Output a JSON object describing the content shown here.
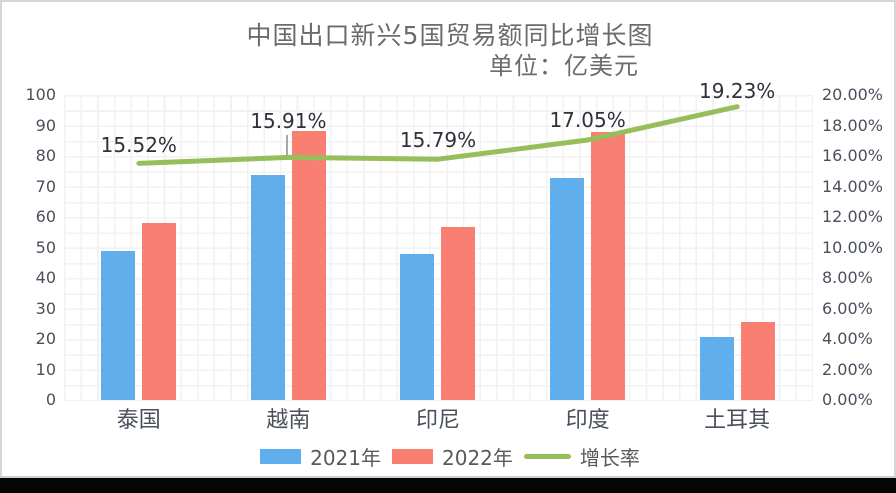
{
  "title": "中国出口新兴5国贸易额同比增长图",
  "subtitle": "单位：亿美元",
  "colors": {
    "bar_2021": "#61AEEC",
    "bar_2022": "#F97F72",
    "growth_line": "#97BE5A",
    "title_text": "#6B6B6B",
    "axis_text": "#4A505C",
    "data_label_text": "#30303A",
    "grid": "#F2F2F2",
    "card_background": "#FFFFFF",
    "outer_strip": "#050505"
  },
  "chart_data": {
    "type": "bar",
    "subtype": "combo-bar-line",
    "categories": [
      "泰国",
      "越南",
      "印尼",
      "印度",
      "土耳其"
    ],
    "series": [
      {
        "name": "2021年",
        "type": "bar",
        "axis": "left",
        "values": [
          48.9,
          73.9,
          47.8,
          72.8,
          20.5
        ]
      },
      {
        "name": "2022年",
        "type": "bar",
        "axis": "left",
        "values": [
          57.9,
          88.1,
          56.8,
          88.0,
          25.6
        ]
      },
      {
        "name": "增长率",
        "type": "line",
        "axis": "right",
        "values_pct": [
          15.52,
          15.91,
          15.79,
          17.05,
          19.23
        ],
        "point_labels": [
          "15.52%",
          "15.91%",
          "15.79%",
          "17.05%",
          "19.23%"
        ]
      }
    ],
    "left_axis": {
      "min": 0,
      "max": 100,
      "step": 10,
      "ticks": [
        "100",
        "90",
        "80",
        "70",
        "60",
        "50",
        "40",
        "30",
        "20",
        "10",
        "0"
      ]
    },
    "right_axis": {
      "min": 0,
      "max": 20,
      "step": 2,
      "ticks": [
        "20.00%",
        "18.00%",
        "16.00%",
        "14.00%",
        "12.00%",
        "10.00%",
        "8.00%",
        "6.00%",
        "4.00%",
        "2.00%",
        "0.00%"
      ]
    },
    "legend": [
      "2021年",
      "2022年",
      "增长率"
    ],
    "legend_position": "bottom",
    "grid": true
  }
}
